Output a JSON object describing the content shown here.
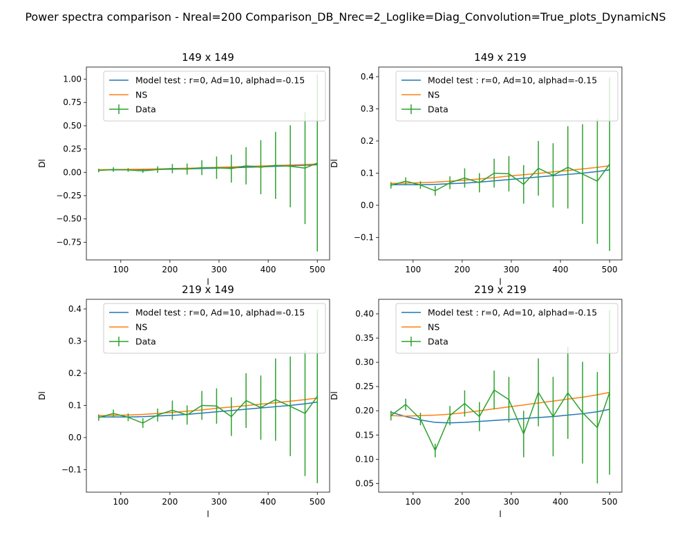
{
  "figure_title": "Power spectra comparison - Nreal=200 Comparison_DB_Nrec=2_Loglike=Diag_Convolution=True_plots_DynamicNS",
  "colors": {
    "model": "#1f77b4",
    "ns": "#ff7f0e",
    "data": "#2ca02c"
  },
  "chart_data": [
    {
      "type": "line",
      "title": "149 x 149",
      "xlabel": "l",
      "ylabel": "Dl",
      "xlim": [
        30,
        525
      ],
      "ylim": [
        -0.94,
        1.13
      ],
      "xticks": [
        100,
        200,
        300,
        400,
        500
      ],
      "yticks": [
        -0.75,
        -0.5,
        -0.25,
        0.0,
        0.25,
        0.5,
        0.75,
        1.0
      ],
      "ytick_labels": [
        "−0.75",
        "−0.50",
        "−0.25",
        "0.00",
        "0.25",
        "0.50",
        "0.75",
        "1.00"
      ],
      "legend": "top-right",
      "legend_entries": [
        "Model test : r=0, Ad=10, alphad=-0.15",
        "NS",
        "Data"
      ],
      "x": [
        55,
        85,
        115,
        145,
        175,
        205,
        235,
        265,
        295,
        325,
        355,
        385,
        415,
        445,
        475,
        500
      ],
      "series": [
        {
          "name": "Model test : r=0, Ad=10, alphad=-0.15",
          "values": [
            0.025,
            0.026,
            0.027,
            0.029,
            0.031,
            0.034,
            0.037,
            0.041,
            0.045,
            0.049,
            0.054,
            0.059,
            0.064,
            0.07,
            0.076,
            0.081
          ]
        },
        {
          "name": "NS",
          "values": [
            0.028,
            0.03,
            0.032,
            0.034,
            0.037,
            0.04,
            0.044,
            0.048,
            0.053,
            0.058,
            0.063,
            0.068,
            0.073,
            0.078,
            0.084,
            0.089
          ]
        },
        {
          "name": "Data",
          "values": [
            0.02,
            0.03,
            0.025,
            0.015,
            0.03,
            0.04,
            0.035,
            0.05,
            0.05,
            0.04,
            0.07,
            0.055,
            0.075,
            0.065,
            0.045,
            0.1
          ],
          "errors": [
            0.02,
            0.025,
            0.02,
            0.02,
            0.035,
            0.05,
            0.06,
            0.08,
            0.12,
            0.15,
            0.2,
            0.29,
            0.36,
            0.44,
            0.6,
            0.95
          ]
        }
      ]
    },
    {
      "type": "line",
      "title": "149 x 219",
      "xlabel": "l",
      "ylabel": "Dl",
      "xlim": [
        30,
        525
      ],
      "ylim": [
        -0.17,
        0.43
      ],
      "xticks": [
        100,
        200,
        300,
        400,
        500
      ],
      "yticks": [
        -0.1,
        0.0,
        0.1,
        0.2,
        0.3,
        0.4
      ],
      "ytick_labels": [
        "−0.1",
        "0.0",
        "0.1",
        "0.2",
        "0.3",
        "0.4"
      ],
      "legend": "top-right",
      "legend_entries": [
        "Model test : r=0, Ad=10, alphad=-0.15",
        "NS",
        "Data"
      ],
      "x": [
        55,
        85,
        115,
        145,
        175,
        205,
        235,
        265,
        295,
        325,
        355,
        385,
        415,
        445,
        475,
        500
      ],
      "series": [
        {
          "name": "Model test : r=0, Ad=10, alphad=-0.15",
          "values": [
            0.064,
            0.064,
            0.064,
            0.065,
            0.067,
            0.069,
            0.072,
            0.076,
            0.08,
            0.084,
            0.088,
            0.092,
            0.096,
            0.1,
            0.105,
            0.11
          ]
        },
        {
          "name": "NS",
          "values": [
            0.068,
            0.069,
            0.07,
            0.072,
            0.075,
            0.078,
            0.082,
            0.086,
            0.091,
            0.095,
            0.099,
            0.104,
            0.108,
            0.113,
            0.118,
            0.123
          ]
        },
        {
          "name": "Data",
          "values": [
            0.062,
            0.075,
            0.063,
            0.045,
            0.07,
            0.085,
            0.07,
            0.1,
            0.098,
            0.065,
            0.115,
            0.093,
            0.118,
            0.097,
            0.075,
            0.128
          ],
          "errors": [
            0.01,
            0.012,
            0.012,
            0.015,
            0.02,
            0.03,
            0.03,
            0.045,
            0.055,
            0.06,
            0.085,
            0.1,
            0.128,
            0.155,
            0.195,
            0.27
          ]
        }
      ]
    },
    {
      "type": "line",
      "title": "219 x 149",
      "xlabel": "l",
      "ylabel": "Dl",
      "xlim": [
        30,
        525
      ],
      "ylim": [
        -0.17,
        0.43
      ],
      "xticks": [
        100,
        200,
        300,
        400,
        500
      ],
      "yticks": [
        -0.1,
        0.0,
        0.1,
        0.2,
        0.3,
        0.4
      ],
      "ytick_labels": [
        "−0.1",
        "0.0",
        "0.1",
        "0.2",
        "0.3",
        "0.4"
      ],
      "legend": "top-right",
      "legend_entries": [
        "Model test : r=0, Ad=10, alphad=-0.15",
        "NS",
        "Data"
      ],
      "x": [
        55,
        85,
        115,
        145,
        175,
        205,
        235,
        265,
        295,
        325,
        355,
        385,
        415,
        445,
        475,
        500
      ],
      "series": [
        {
          "name": "Model test : r=0, Ad=10, alphad=-0.15",
          "values": [
            0.064,
            0.064,
            0.064,
            0.065,
            0.067,
            0.069,
            0.072,
            0.076,
            0.08,
            0.084,
            0.088,
            0.092,
            0.096,
            0.1,
            0.105,
            0.11
          ]
        },
        {
          "name": "NS",
          "values": [
            0.068,
            0.069,
            0.07,
            0.072,
            0.075,
            0.078,
            0.082,
            0.086,
            0.091,
            0.095,
            0.099,
            0.104,
            0.108,
            0.113,
            0.118,
            0.123
          ]
        },
        {
          "name": "Data",
          "values": [
            0.062,
            0.075,
            0.063,
            0.045,
            0.07,
            0.085,
            0.07,
            0.1,
            0.098,
            0.065,
            0.115,
            0.093,
            0.118,
            0.097,
            0.075,
            0.128
          ],
          "errors": [
            0.01,
            0.012,
            0.012,
            0.015,
            0.02,
            0.03,
            0.03,
            0.045,
            0.055,
            0.06,
            0.085,
            0.1,
            0.128,
            0.155,
            0.195,
            0.27
          ]
        }
      ]
    },
    {
      "type": "line",
      "title": "219 x 219",
      "xlabel": "l",
      "ylabel": "Dl",
      "xlim": [
        30,
        525
      ],
      "ylim": [
        0.032,
        0.43
      ],
      "xticks": [
        100,
        200,
        300,
        400,
        500
      ],
      "yticks": [
        0.05,
        0.1,
        0.15,
        0.2,
        0.25,
        0.3,
        0.35,
        0.4
      ],
      "ytick_labels": [
        "0.05",
        "0.10",
        "0.15",
        "0.20",
        "0.25",
        "0.30",
        "0.35",
        "0.40"
      ],
      "legend": "top-right",
      "legend_entries": [
        "Model test : r=0, Ad=10, alphad=-0.15",
        "NS",
        "Data"
      ],
      "x": [
        55,
        85,
        115,
        145,
        175,
        205,
        235,
        265,
        295,
        325,
        355,
        385,
        415,
        445,
        475,
        500
      ],
      "series": [
        {
          "name": "Model test : r=0, Ad=10, alphad=-0.15",
          "values": [
            0.197,
            0.188,
            0.181,
            0.176,
            0.175,
            0.176,
            0.178,
            0.18,
            0.182,
            0.184,
            0.186,
            0.188,
            0.191,
            0.194,
            0.198,
            0.203
          ]
        },
        {
          "name": "NS",
          "values": [
            0.19,
            0.189,
            0.19,
            0.191,
            0.193,
            0.196,
            0.2,
            0.204,
            0.208,
            0.212,
            0.216,
            0.22,
            0.224,
            0.228,
            0.233,
            0.238
          ]
        },
        {
          "name": "Data",
          "values": [
            0.19,
            0.213,
            0.183,
            0.118,
            0.19,
            0.215,
            0.188,
            0.243,
            0.223,
            0.152,
            0.238,
            0.188,
            0.237,
            0.196,
            0.165,
            0.238
          ],
          "errors": [
            0.01,
            0.012,
            0.013,
            0.014,
            0.02,
            0.027,
            0.03,
            0.04,
            0.047,
            0.048,
            0.07,
            0.082,
            0.095,
            0.105,
            0.115,
            0.17
          ]
        }
      ]
    }
  ]
}
